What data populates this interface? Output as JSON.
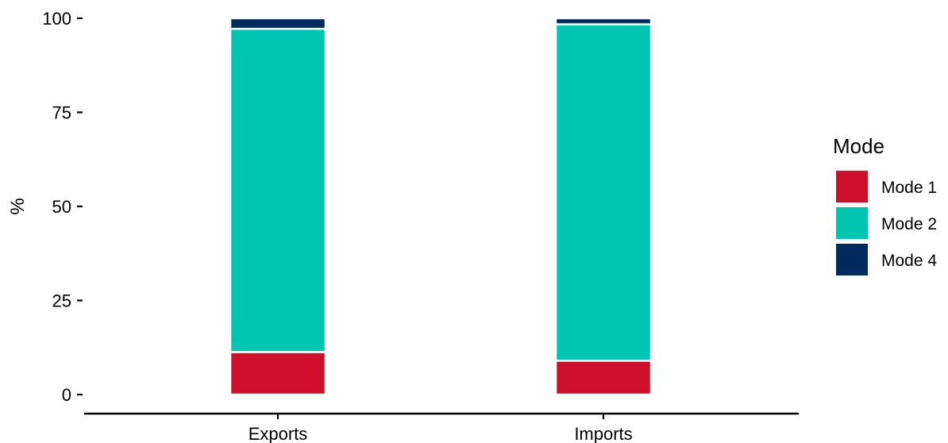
{
  "chart_data": {
    "type": "bar",
    "stacked": true,
    "categories": [
      "Exports",
      "Imports"
    ],
    "series": [
      {
        "name": "Mode 1",
        "values": [
          11.3,
          9.0
        ],
        "color": "#CF102D"
      },
      {
        "name": "Mode 2",
        "values": [
          85.9,
          89.4
        ],
        "color": "#00C5B0"
      },
      {
        "name": "Mode 4",
        "values": [
          2.8,
          1.6
        ],
        "color": "#002B5F"
      }
    ],
    "title": "",
    "xlabel": "",
    "ylabel": "%",
    "ylim": [
      0,
      100
    ],
    "yticks": [
      0,
      25,
      50,
      75,
      100
    ],
    "grid": false,
    "legend": {
      "title": "Mode",
      "position": "right"
    }
  }
}
